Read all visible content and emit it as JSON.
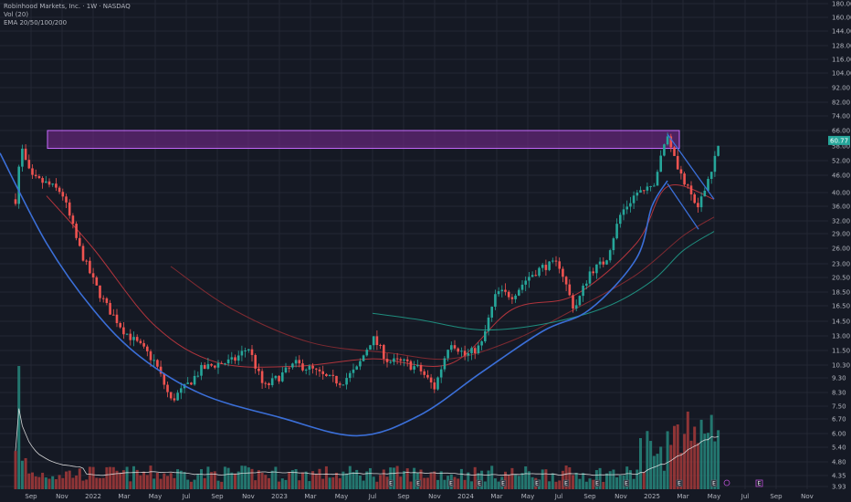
{
  "legend": {
    "title": "Robinhood Markets, Inc. · 1W · NASDAQ",
    "vol_label": "Vol (20)",
    "ema_label": "EMA 20/50/100/200"
  },
  "current_price_tag": "60.77",
  "colors": {
    "background": "#151924",
    "grid": "#232734",
    "up": "#26a69a",
    "down": "#ef5350",
    "vol_up": "#26877d",
    "vol_down": "#a33a3a",
    "highlight_fill": "#7b2a93",
    "highlight_border": "#c86bff",
    "cup_line": "#3b6fd8",
    "ema20": "#b0343c",
    "ema50": "#7e2a31",
    "ema100": "#1f8c7d",
    "volume_ma": "#e8e8e8",
    "axis_text": "#b2b5be",
    "price_tag": "#26a69a"
  },
  "chart_data": {
    "type": "candlestick",
    "x_axis": {
      "tick_labels": [
        "Sep",
        "Nov",
        "2022",
        "Mar",
        "May",
        "Jul",
        "Sep",
        "Nov",
        "2023",
        "Mar",
        "May",
        "Jul",
        "Sep",
        "Nov",
        "2024",
        "Mar",
        "May",
        "Jul",
        "Sep",
        "Nov",
        "2025",
        "Mar",
        "May",
        "Jul",
        "Sep",
        "Nov"
      ],
      "range": [
        "2021-07",
        "2025-11"
      ]
    },
    "y_axis": {
      "scale": "log",
      "tick_labels": [
        "180.00",
        "160.00",
        "144.00",
        "128.00",
        "116.00",
        "104.00",
        "92.00",
        "82.00",
        "74.00",
        "66.00",
        "58.00",
        "52.00",
        "46.00",
        "40.00",
        "36.00",
        "32.00",
        "29.00",
        "26.00",
        "23.00",
        "20.50",
        "18.50",
        "16.50",
        "14.50",
        "13.00",
        "11.50",
        "10.30",
        "9.30",
        "8.30",
        "7.50",
        "6.70",
        "6.00",
        "5.40",
        "4.80",
        "4.35",
        "3.93"
      ],
      "range": [
        3.93,
        180
      ]
    },
    "price_keypoints": [
      {
        "date": "2021-08",
        "close": 38
      },
      {
        "date": "2021-08",
        "close": 58
      },
      {
        "date": "2021-09",
        "close": 45
      },
      {
        "date": "2021-10",
        "close": 43
      },
      {
        "date": "2021-11",
        "close": 40
      },
      {
        "date": "2021-12",
        "close": 27
      },
      {
        "date": "2022-01",
        "close": 20
      },
      {
        "date": "2022-02",
        "close": 16
      },
      {
        "date": "2022-03",
        "close": 13.5
      },
      {
        "date": "2022-04",
        "close": 12
      },
      {
        "date": "2022-05",
        "close": 10.5
      },
      {
        "date": "2022-06",
        "close": 7.8
      },
      {
        "date": "2022-07",
        "close": 8.7
      },
      {
        "date": "2022-08",
        "close": 10
      },
      {
        "date": "2022-09",
        "close": 10.4
      },
      {
        "date": "2022-10",
        "close": 10.6
      },
      {
        "date": "2022-11",
        "close": 11.8
      },
      {
        "date": "2022-12",
        "close": 8.6
      },
      {
        "date": "2023-01",
        "close": 9.4
      },
      {
        "date": "2023-02",
        "close": 10.4
      },
      {
        "date": "2023-03",
        "close": 10
      },
      {
        "date": "2023-04",
        "close": 9.3
      },
      {
        "date": "2023-05",
        "close": 9.0
      },
      {
        "date": "2023-06",
        "close": 10
      },
      {
        "date": "2023-07",
        "close": 12.8
      },
      {
        "date": "2023-08",
        "close": 10.6
      },
      {
        "date": "2023-09",
        "close": 10.5
      },
      {
        "date": "2023-10",
        "close": 10
      },
      {
        "date": "2023-11",
        "close": 8.6
      },
      {
        "date": "2023-12",
        "close": 12.5
      },
      {
        "date": "2024-01",
        "close": 11
      },
      {
        "date": "2024-02",
        "close": 12
      },
      {
        "date": "2024-03",
        "close": 18.5
      },
      {
        "date": "2024-04",
        "close": 18
      },
      {
        "date": "2024-05",
        "close": 20.5
      },
      {
        "date": "2024-06",
        "close": 22.5
      },
      {
        "date": "2024-07",
        "close": 23
      },
      {
        "date": "2024-08",
        "close": 16
      },
      {
        "date": "2024-09",
        "close": 21.5
      },
      {
        "date": "2024-10",
        "close": 23.5
      },
      {
        "date": "2024-11",
        "close": 34
      },
      {
        "date": "2024-12",
        "close": 40
      },
      {
        "date": "2025-01",
        "close": 41
      },
      {
        "date": "2025-02",
        "close": 64
      },
      {
        "date": "2025-03",
        "close": 44
      },
      {
        "date": "2025-04",
        "close": 35
      },
      {
        "date": "2025-05",
        "close": 52
      },
      {
        "date": "2025-05",
        "close": 60.77
      }
    ],
    "resistance_zone": {
      "low": 57,
      "high": 66
    },
    "cup_line_points": [
      {
        "date": "2021-07",
        "price": 55
      },
      {
        "date": "2021-10",
        "price": 27
      },
      {
        "date": "2022-01",
        "price": 16
      },
      {
        "date": "2022-04",
        "price": 11
      },
      {
        "date": "2022-08",
        "price": 8.2
      },
      {
        "date": "2023-01",
        "price": 6.8
      },
      {
        "date": "2023-06",
        "price": 5.9
      },
      {
        "date": "2023-10",
        "price": 6.9
      },
      {
        "date": "2024-02",
        "price": 9.7
      },
      {
        "date": "2024-06",
        "price": 13.5
      },
      {
        "date": "2024-09",
        "price": 16
      },
      {
        "date": "2024-12",
        "price": 24
      },
      {
        "date": "2025-01",
        "price": 36
      },
      {
        "date": "2025-02",
        "price": 44
      }
    ],
    "wedge_lines": [
      [
        {
          "date": "2025-02",
          "price": 64
        },
        {
          "date": "2025-05",
          "price": 38
        }
      ],
      [
        {
          "date": "2025-02",
          "price": 43
        },
        {
          "date": "2025-04",
          "price": 30
        }
      ]
    ],
    "ema20": [
      {
        "date": "2021-10",
        "price": 39
      },
      {
        "date": "2022-01",
        "price": 26
      },
      {
        "date": "2022-05",
        "price": 14
      },
      {
        "date": "2022-09",
        "price": 10.5
      },
      {
        "date": "2023-02",
        "price": 10.2
      },
      {
        "date": "2023-07",
        "price": 10.8
      },
      {
        "date": "2023-12",
        "price": 10.4
      },
      {
        "date": "2024-04",
        "price": 16
      },
      {
        "date": "2024-08",
        "price": 18
      },
      {
        "date": "2024-12",
        "price": 27
      },
      {
        "date": "2025-02",
        "price": 42
      },
      {
        "date": "2025-05",
        "price": 38
      }
    ],
    "ema50": [
      {
        "date": "2022-06",
        "price": 22.5
      },
      {
        "date": "2022-10",
        "price": 16
      },
      {
        "date": "2023-03",
        "price": 12.3
      },
      {
        "date": "2023-08",
        "price": 11.3
      },
      {
        "date": "2023-12",
        "price": 10.8
      },
      {
        "date": "2024-04",
        "price": 12.5
      },
      {
        "date": "2024-08",
        "price": 16
      },
      {
        "date": "2024-12",
        "price": 21
      },
      {
        "date": "2025-03",
        "price": 28.5
      },
      {
        "date": "2025-05",
        "price": 33
      }
    ],
    "ema100": [
      {
        "date": "2023-07",
        "price": 15.5
      },
      {
        "date": "2023-10",
        "price": 14.7
      },
      {
        "date": "2024-02",
        "price": 13.6
      },
      {
        "date": "2024-06",
        "price": 14.2
      },
      {
        "date": "2024-10",
        "price": 16.3
      },
      {
        "date": "2025-01",
        "price": 20
      },
      {
        "date": "2025-03",
        "price": 25.5
      },
      {
        "date": "2025-05",
        "price": 29.5
      }
    ]
  }
}
